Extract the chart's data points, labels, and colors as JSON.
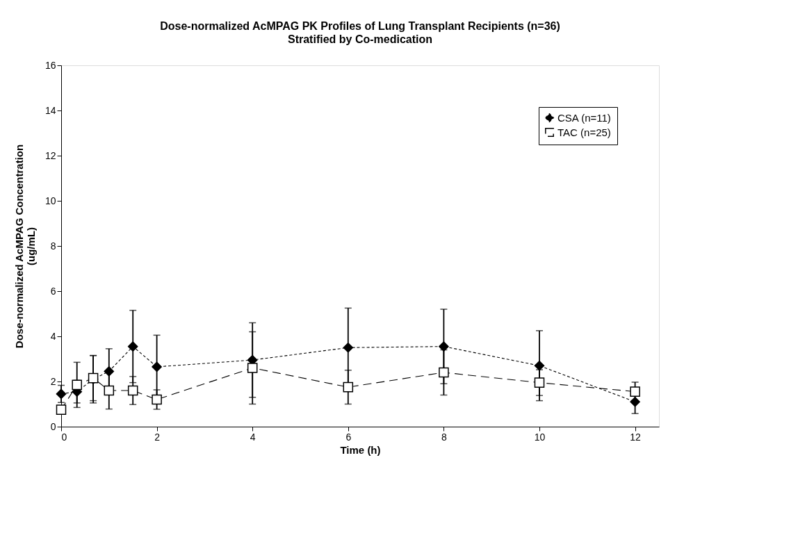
{
  "chart_data": {
    "type": "line",
    "title": "Dose-normalized AcMPAG PK Profiles of Lung Transplant Recipients (n=36)",
    "subtitle": "Stratified by Co-medication",
    "xlabel": "Time (h)",
    "ylabel": "Dose-normalized AcMPAG Concentration\n(ug/mL)",
    "x": [
      0,
      0.33,
      0.67,
      1,
      1.5,
      2,
      4,
      6,
      8,
      10,
      12
    ],
    "series": [
      {
        "name": "CSA (n=11)",
        "color": "#000000",
        "marker": "diamond",
        "line_style": "dotted",
        "values": [
          1.45,
          1.55,
          2.1,
          2.45,
          3.55,
          2.65,
          2.95,
          3.5,
          3.55,
          2.7,
          1.1
        ],
        "errors": [
          0.38,
          0.5,
          1.05,
          1.0,
          1.6,
          1.4,
          1.65,
          1.75,
          1.65,
          1.55,
          0.52
        ]
      },
      {
        "name": "TAC (n=25)",
        "color": "#000000",
        "marker": "square",
        "line_style": "dashed",
        "values": [
          0.75,
          1.85,
          2.15,
          1.6,
          1.6,
          1.2,
          2.6,
          1.75,
          2.4,
          1.95,
          1.55
        ],
        "errors": [
          null,
          1.0,
          1.0,
          0.82,
          0.62,
          0.43,
          1.6,
          0.75,
          1.0,
          0.57,
          0.42
        ]
      }
    ],
    "xlim": [
      0,
      12.5
    ],
    "xticks": [
      0,
      2,
      4,
      6,
      8,
      10,
      12
    ],
    "ylim": [
      0,
      16
    ],
    "yticks": [
      0,
      2,
      4,
      6,
      8,
      10,
      12,
      14,
      16
    ],
    "grid": false,
    "legend": "top right"
  }
}
